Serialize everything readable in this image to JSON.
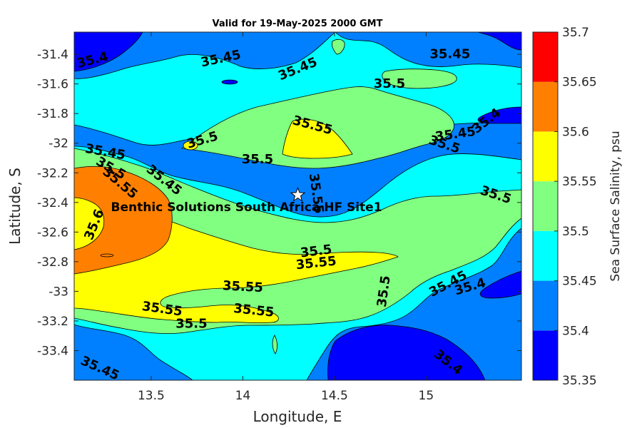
{
  "chart_data": {
    "type": "contour",
    "title": "Valid for 19-May-2025 2000 GMT",
    "xlabel": "Longitude, E",
    "ylabel": "Latitude, S",
    "colorbar_label": "Sea Surface Salinity, psu",
    "xlim": [
      13.08,
      15.52
    ],
    "ylim": [
      -33.6,
      -31.25
    ],
    "x_ticks": [
      13.5,
      14,
      14.5,
      15
    ],
    "x_tick_labels": [
      "13.5",
      "14",
      "14.5",
      "15"
    ],
    "y_ticks": [
      -31.4,
      -31.6,
      -31.8,
      -32,
      -32.2,
      -32.4,
      -32.6,
      -32.8,
      -33,
      -33.2,
      -33.4
    ],
    "y_tick_labels": [
      "-31.4",
      "-31.6",
      "-31.8",
      "-32",
      "-32.2",
      "-32.4",
      "-32.6",
      "-32.8",
      "-33",
      "-33.2",
      "-33.4"
    ],
    "levels": [
      35.35,
      35.4,
      35.45,
      35.5,
      35.55,
      35.6,
      35.65,
      35.7
    ],
    "level_labels": [
      "35.35",
      "35.4",
      "35.45",
      "35.5",
      "35.55",
      "35.6",
      "35.65",
      "35.7"
    ],
    "level_colors": [
      "#0000ff",
      "#0080ff",
      "#00ffff",
      "#80ff80",
      "#ffff00",
      "#ff8000",
      "#ff0000"
    ],
    "contour_labels": [
      {
        "text": "35.4",
        "x": 13.18,
        "y": -31.44,
        "angle": -14
      },
      {
        "text": "35.45",
        "x": 13.88,
        "y": -31.43,
        "angle": -12
      },
      {
        "text": "35.45",
        "x": 14.3,
        "y": -31.5,
        "angle": -22
      },
      {
        "text": "35.45",
        "x": 15.13,
        "y": -31.4,
        "angle": 0
      },
      {
        "text": "35.5",
        "x": 14.8,
        "y": -31.6,
        "angle": 0
      },
      {
        "text": "35.4",
        "x": 15.33,
        "y": -31.85,
        "angle": -38
      },
      {
        "text": "35.55",
        "x": 14.38,
        "y": -31.88,
        "angle": 15
      },
      {
        "text": "35.45",
        "x": 15.16,
        "y": -31.94,
        "angle": -8
      },
      {
        "text": "35.5",
        "x": 15.1,
        "y": -32.01,
        "angle": 18
      },
      {
        "text": "35.5",
        "x": 13.78,
        "y": -31.98,
        "angle": -16
      },
      {
        "text": "35.5",
        "x": 14.08,
        "y": -32.11,
        "angle": 0
      },
      {
        "text": "35.45",
        "x": 13.25,
        "y": -32.06,
        "angle": 10
      },
      {
        "text": "35.5",
        "x": 13.28,
        "y": -32.17,
        "angle": 30
      },
      {
        "text": "35.55",
        "x": 13.33,
        "y": -32.27,
        "angle": 40
      },
      {
        "text": "35.45",
        "x": 13.57,
        "y": -32.25,
        "angle": 38
      },
      {
        "text": "35.55",
        "x": 14.4,
        "y": -32.34,
        "angle": 82
      },
      {
        "text": "35.5",
        "x": 15.38,
        "y": -32.35,
        "angle": 18
      },
      {
        "text": "35.6",
        "x": 13.19,
        "y": -32.55,
        "angle": -68
      },
      {
        "text": "35.5",
        "x": 14.4,
        "y": -32.73,
        "angle": -7
      },
      {
        "text": "35.55",
        "x": 14.4,
        "y": -32.81,
        "angle": -6
      },
      {
        "text": "35.55",
        "x": 14.0,
        "y": -32.97,
        "angle": 3
      },
      {
        "text": "35.5",
        "x": 14.77,
        "y": -33.0,
        "angle": -82
      },
      {
        "text": "35.45",
        "x": 15.12,
        "y": -32.95,
        "angle": -28
      },
      {
        "text": "35.4",
        "x": 15.24,
        "y": -32.97,
        "angle": -16
      },
      {
        "text": "35.55",
        "x": 13.56,
        "y": -33.12,
        "angle": 8
      },
      {
        "text": "35.55",
        "x": 14.06,
        "y": -33.13,
        "angle": 6
      },
      {
        "text": "35.5",
        "x": 13.72,
        "y": -33.22,
        "angle": 0
      },
      {
        "text": "35.45",
        "x": 13.22,
        "y": -33.52,
        "angle": 24
      },
      {
        "text": "35.4",
        "x": 15.12,
        "y": -33.48,
        "angle": 38
      }
    ],
    "site": {
      "name": "Benthic Solutions South Africa HF Site1",
      "x": 14.3,
      "y": -32.35,
      "label_x": 14.02,
      "label_y": -32.43
    }
  }
}
